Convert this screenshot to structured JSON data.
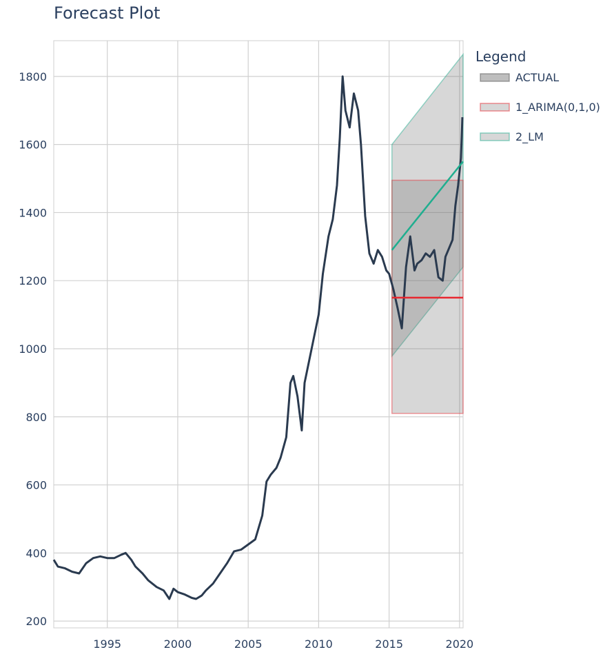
{
  "chart_data": {
    "type": "line",
    "title": "Forecast Plot",
    "xlabel": "",
    "ylabel": "",
    "xlim": [
      1991.2,
      2020.25
    ],
    "ylim": [
      180,
      1905
    ],
    "x_ticks": [
      1995,
      2000,
      2005,
      2010,
      2015,
      2020
    ],
    "y_ticks": [
      200,
      400,
      600,
      800,
      1000,
      1200,
      1400,
      1600,
      1800
    ],
    "grid": true,
    "legend": {
      "title": "Legend",
      "position": "right",
      "entries": [
        "ACTUAL",
        "1_ARIMA(0,1,0)",
        "2_LM"
      ]
    },
    "series": [
      {
        "name": "ACTUAL",
        "color": "#2a3a4f",
        "x": [
          1991.2,
          1991.5,
          1992.0,
          1992.5,
          1993.0,
          1993.5,
          1994.0,
          1994.5,
          1995.0,
          1995.5,
          1996.0,
          1996.3,
          1996.7,
          1997.0,
          1997.5,
          1997.9,
          1998.5,
          1999.0,
          1999.4,
          1999.7,
          2000.0,
          2000.5,
          2001.0,
          2001.3,
          2001.7,
          2002.0,
          2002.5,
          2003.0,
          2003.5,
          2004.0,
          2004.5,
          2005.0,
          2005.5,
          2006.0,
          2006.3,
          2006.6,
          2007.0,
          2007.3,
          2007.7,
          2008.0,
          2008.2,
          2008.5,
          2008.8,
          2009.0,
          2009.5,
          2010.0,
          2010.3,
          2010.7,
          2011.0,
          2011.3,
          2011.5,
          2011.7,
          2011.9,
          2012.2,
          2012.5,
          2012.8,
          2013.0,
          2013.3,
          2013.6,
          2013.9,
          2014.2,
          2014.5,
          2014.8,
          2015.0,
          2015.3,
          2015.6,
          2015.9,
          2016.2,
          2016.5,
          2016.8,
          2017.0,
          2017.3,
          2017.6,
          2017.9,
          2018.2,
          2018.5,
          2018.8,
          2019.0,
          2019.2,
          2019.5,
          2019.7,
          2019.9,
          2020.1,
          2020.2
        ],
        "values": [
          380,
          360,
          355,
          345,
          340,
          370,
          385,
          390,
          385,
          385,
          395,
          400,
          380,
          360,
          340,
          320,
          300,
          290,
          265,
          295,
          285,
          278,
          268,
          265,
          275,
          290,
          310,
          340,
          370,
          405,
          410,
          425,
          440,
          510,
          610,
          630,
          650,
          680,
          740,
          900,
          920,
          860,
          760,
          900,
          1000,
          1100,
          1220,
          1330,
          1380,
          1480,
          1620,
          1800,
          1700,
          1650,
          1750,
          1700,
          1600,
          1390,
          1280,
          1250,
          1290,
          1270,
          1230,
          1220,
          1175,
          1120,
          1060,
          1240,
          1330,
          1230,
          1250,
          1260,
          1280,
          1270,
          1290,
          1210,
          1200,
          1270,
          1290,
          1320,
          1420,
          1480,
          1560,
          1680
        ]
      },
      {
        "name": "1_ARIMA(0,1,0)",
        "color": "#e8262e",
        "x": [
          2015.2,
          2020.25
        ],
        "values": [
          1150,
          1150
        ],
        "lower": [
          810,
          810
        ],
        "upper": [
          1495,
          1495
        ]
      },
      {
        "name": "2_LM",
        "color": "#20ae8f",
        "x": [
          2015.2,
          2020.25
        ],
        "values": [
          1290,
          1550
        ],
        "lower": [
          978,
          1240
        ],
        "upper": [
          1600,
          1865
        ]
      }
    ]
  }
}
